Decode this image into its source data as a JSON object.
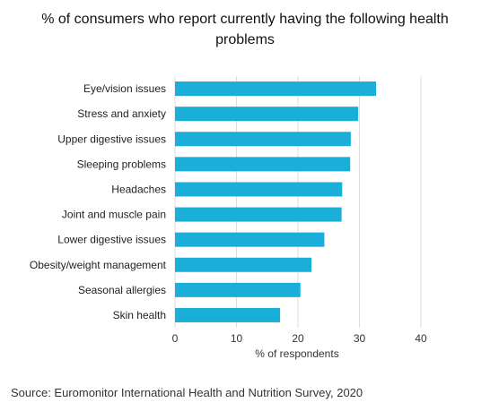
{
  "chart_data": {
    "type": "bar",
    "orientation": "horizontal",
    "title": "% of consumers who report currently having the following health problems",
    "xlabel": "% of respondents",
    "ylabel": "",
    "xlim": [
      0,
      40
    ],
    "xticks": [
      0,
      10,
      20,
      30,
      40
    ],
    "grid": true,
    "bar_color": "#1aaed9",
    "categories": [
      "Eye/vision issues",
      "Stress and anxiety",
      "Upper digestive issues",
      "Sleeping problems",
      "Headaches",
      "Joint and muscle pain",
      "Lower digestive issues",
      "Obesity/weight management",
      "Seasonal allergies",
      "Skin health"
    ],
    "values": [
      32.7,
      29.8,
      28.6,
      28.5,
      27.2,
      27.1,
      24.3,
      22.2,
      20.4,
      17.1
    ]
  },
  "footer": {
    "source": "Source: Euromonitor International Health and Nutrition Survey, 2020"
  }
}
